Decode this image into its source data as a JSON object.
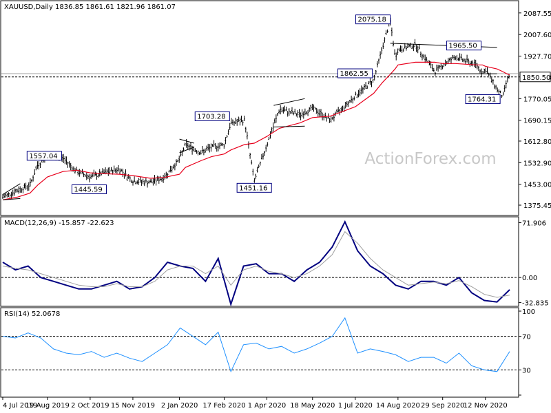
{
  "header": {
    "symbol": "XAUUSD,Daily",
    "ohlc": "1836.85 1861.61 1821.96 1861.07"
  },
  "macd_label": "MACD(12,26,9) -15.857 -22.623",
  "rsi_label": "RSI(14) 52.0678",
  "watermark": "ActionForex.com",
  "colors": {
    "price": "#000000",
    "ma": "#e8001c",
    "macd": "#000080",
    "signal": "#a0a0a0",
    "rsi": "#1e90ff",
    "label_border": "#000080",
    "grid": "#c8c8c8"
  },
  "chart_data": [
    {
      "type": "ohlc",
      "pane": "price",
      "ylim": [
        1350,
        2110
      ],
      "yticks": [
        "2087.55",
        "2007.60",
        "1927.70",
        "1850.50",
        "1770.05",
        "1690.15",
        "1612.80",
        "1532.90",
        "1453.00",
        "1375.45"
      ],
      "xticks": [
        "4 Jul 2019",
        "19 Aug 2019",
        "2 Oct 2019",
        "15 Nov 2019",
        "2 Jan 2020",
        "17 Feb 2020",
        "1 Apr 2020",
        "18 May 2020",
        "1 Jul 2020",
        "14 Aug 2020",
        "29 Sep 2020",
        "12 Nov 2020"
      ],
      "current_price": "1850.50",
      "price_series": [
        {
          "date": "4 Jul 2019",
          "close": 1405
        },
        {
          "date": "19 Jul 2019",
          "close": 1430
        },
        {
          "date": "1 Aug 2019",
          "close": 1450
        },
        {
          "date": "9 Aug 2019",
          "close": 1525
        },
        {
          "date": "19 Aug 2019",
          "close": 1557
        },
        {
          "date": "4 Sep 2019",
          "close": 1550
        },
        {
          "date": "18 Sep 2019",
          "close": 1500
        },
        {
          "date": "2 Oct 2019",
          "close": 1480
        },
        {
          "date": "16 Oct 2019",
          "close": 1495
        },
        {
          "date": "1 Nov 2019",
          "close": 1510
        },
        {
          "date": "15 Nov 2019",
          "close": 1465
        },
        {
          "date": "3 Dec 2019",
          "close": 1460
        },
        {
          "date": "17 Dec 2019",
          "close": 1478
        },
        {
          "date": "2 Jan 2020",
          "close": 1545
        },
        {
          "date": "8 Jan 2020",
          "close": 1600
        },
        {
          "date": "24 Jan 2020",
          "close": 1570
        },
        {
          "date": "4 Feb 2020",
          "close": 1590
        },
        {
          "date": "17 Feb 2020",
          "close": 1600
        },
        {
          "date": "24 Feb 2020",
          "close": 1680
        },
        {
          "date": "9 Mar 2020",
          "close": 1690
        },
        {
          "date": "19 Mar 2020",
          "close": 1465
        },
        {
          "date": "1 Apr 2020",
          "close": 1600
        },
        {
          "date": "14 Apr 2020",
          "close": 1730
        },
        {
          "date": "5 May 2020",
          "close": 1710
        },
        {
          "date": "18 May 2020",
          "close": 1735
        },
        {
          "date": "5 Jun 2020",
          "close": 1690
        },
        {
          "date": "1 Jul 2020",
          "close": 1780
        },
        {
          "date": "20 Jul 2020",
          "close": 1840
        },
        {
          "date": "29 Jul 2020",
          "close": 1960
        },
        {
          "date": "6 Aug 2020",
          "close": 2060
        },
        {
          "date": "11 Aug 2020",
          "close": 1925
        },
        {
          "date": "14 Aug 2020",
          "close": 1950
        },
        {
          "date": "1 Sep 2020",
          "close": 1970
        },
        {
          "date": "21 Sep 2020",
          "close": 1870
        },
        {
          "date": "29 Sep 2020",
          "close": 1895
        },
        {
          "date": "12 Oct 2020",
          "close": 1925
        },
        {
          "date": "3 Nov 2020",
          "close": 1895
        },
        {
          "date": "9 Nov 2020",
          "close": 1865
        },
        {
          "date": "12 Nov 2020",
          "close": 1880
        },
        {
          "date": "24 Nov 2020",
          "close": 1805
        },
        {
          "date": "30 Nov 2020",
          "close": 1776
        },
        {
          "date": "4 Dec 2020",
          "close": 1836
        },
        {
          "date": "7 Dec 2020",
          "close": 1861
        }
      ],
      "ma_series": [
        1395,
        1405,
        1420,
        1450,
        1480,
        1500,
        1505,
        1495,
        1492,
        1490,
        1485,
        1475,
        1478,
        1490,
        1515,
        1540,
        1555,
        1565,
        1580,
        1600,
        1605,
        1630,
        1660,
        1680,
        1700,
        1705,
        1740,
        1790,
        1830,
        1860,
        1880,
        1895,
        1905,
        1905,
        1900,
        1900,
        1895,
        1895,
        1890,
        1880,
        1870,
        1862,
        1858
      ],
      "annotations": [
        {
          "label": "2075.18",
          "date": "6 Aug 2020",
          "value": 2075.18
        },
        {
          "label": "1965.50",
          "date": "9 Nov 2020",
          "value": 1965.5
        },
        {
          "label": "1862.55",
          "date": "20 Jul 2020",
          "value": 1862.55
        },
        {
          "label": "1764.31",
          "date": "30 Nov 2020",
          "value": 1764.31
        },
        {
          "label": "1703.28",
          "date": "24 Feb 2020",
          "value": 1703.28
        },
        {
          "label": "1557.04",
          "date": "4 Sep 2019",
          "value": 1557.04
        },
        {
          "label": "1445.59",
          "date": "1 Oct 2019",
          "value": 1445.59
        },
        {
          "label": "1451.16",
          "date": "19 Mar 2020",
          "value": 1451.16
        }
      ],
      "horizontal_lines": [
        1862.55,
        1850.5
      ]
    },
    {
      "type": "line",
      "pane": "macd",
      "title": "MACD(12,26,9) -15.857 -22.623",
      "ylim": [
        -35,
        75
      ],
      "yticks": [
        "71.906",
        "0.00",
        "-32.835"
      ],
      "series": [
        {
          "name": "MACD",
          "values": [
            20,
            10,
            15,
            0,
            -5,
            -10,
            -15,
            -15,
            -10,
            -5,
            -15,
            -12,
            0,
            20,
            15,
            12,
            -5,
            25,
            -35,
            15,
            18,
            5,
            5,
            -5,
            10,
            20,
            40,
            73,
            35,
            15,
            5,
            -10,
            -15,
            -5,
            -5,
            -10,
            0,
            -20,
            -30,
            -32,
            -16
          ]
        },
        {
          "name": "Signal",
          "values": [
            15,
            12,
            10,
            5,
            0,
            -5,
            -10,
            -12,
            -12,
            -8,
            -12,
            -12,
            -5,
            10,
            15,
            15,
            5,
            15,
            -10,
            10,
            15,
            8,
            5,
            0,
            5,
            15,
            30,
            60,
            45,
            25,
            10,
            0,
            -10,
            -8,
            -6,
            -8,
            -4,
            -12,
            -22,
            -26,
            -23
          ]
        }
      ]
    },
    {
      "type": "line",
      "pane": "rsi",
      "title": "RSI(14) 52.0678",
      "ylim": [
        0,
        100
      ],
      "yticks": [
        "100",
        "70",
        "30",
        "0"
      ],
      "series": [
        {
          "name": "RSI(14)",
          "values": [
            70,
            68,
            74,
            68,
            55,
            50,
            48,
            52,
            45,
            50,
            44,
            40,
            50,
            60,
            80,
            70,
            60,
            75,
            28,
            60,
            62,
            55,
            58,
            50,
            55,
            62,
            70,
            92,
            50,
            55,
            52,
            48,
            40,
            45,
            45,
            38,
            50,
            35,
            30,
            28,
            52
          ]
        }
      ]
    }
  ]
}
